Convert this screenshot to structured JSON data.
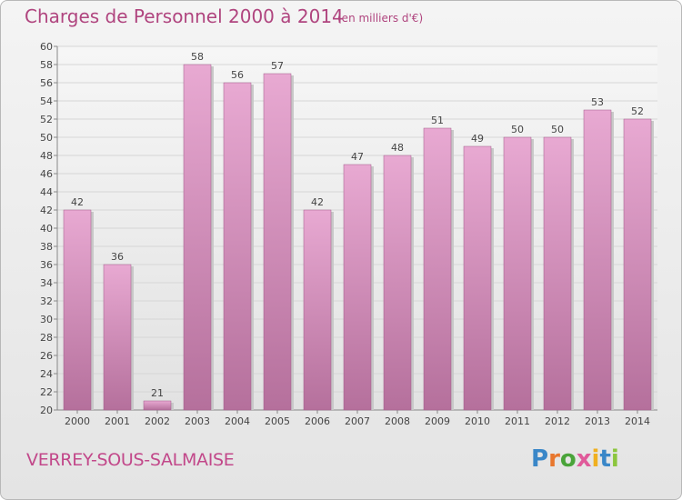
{
  "header": {
    "title": "Charges de Personnel 2000 à 2014",
    "subtitle": "(en milliers d'€)"
  },
  "footer": {
    "commune": "VERREY-SOUS-SALMAISE",
    "logo_letters": [
      "P",
      "r",
      "o",
      "x",
      "i",
      "t",
      "i"
    ],
    "logo_colors": [
      "#3a87c8",
      "#e8772e",
      "#4aa43a",
      "#e05a9a",
      "#f0b020",
      "#3a87c8",
      "#8cc63e"
    ]
  },
  "chart_data": {
    "type": "bar",
    "title": "Charges de Personnel 2000 à 2014",
    "subtitle": "(en milliers d'€)",
    "xlabel": "",
    "ylabel": "",
    "categories": [
      "2000",
      "2001",
      "2002",
      "2003",
      "2004",
      "2005",
      "2006",
      "2007",
      "2008",
      "2009",
      "2010",
      "2011",
      "2012",
      "2013",
      "2014"
    ],
    "values": [
      42,
      36,
      21,
      58,
      56,
      57,
      42,
      47,
      48,
      51,
      49,
      50,
      50,
      53,
      52
    ],
    "ylim": [
      20,
      60
    ],
    "yticks": [
      20,
      22,
      24,
      26,
      28,
      30,
      32,
      34,
      36,
      38,
      40,
      42,
      44,
      46,
      48,
      50,
      52,
      54,
      56,
      58,
      60
    ],
    "grid": true,
    "bar_color_top": "#e8a9d2",
    "bar_color_bottom": "#b5709c",
    "accent_color": "#b0457f"
  }
}
